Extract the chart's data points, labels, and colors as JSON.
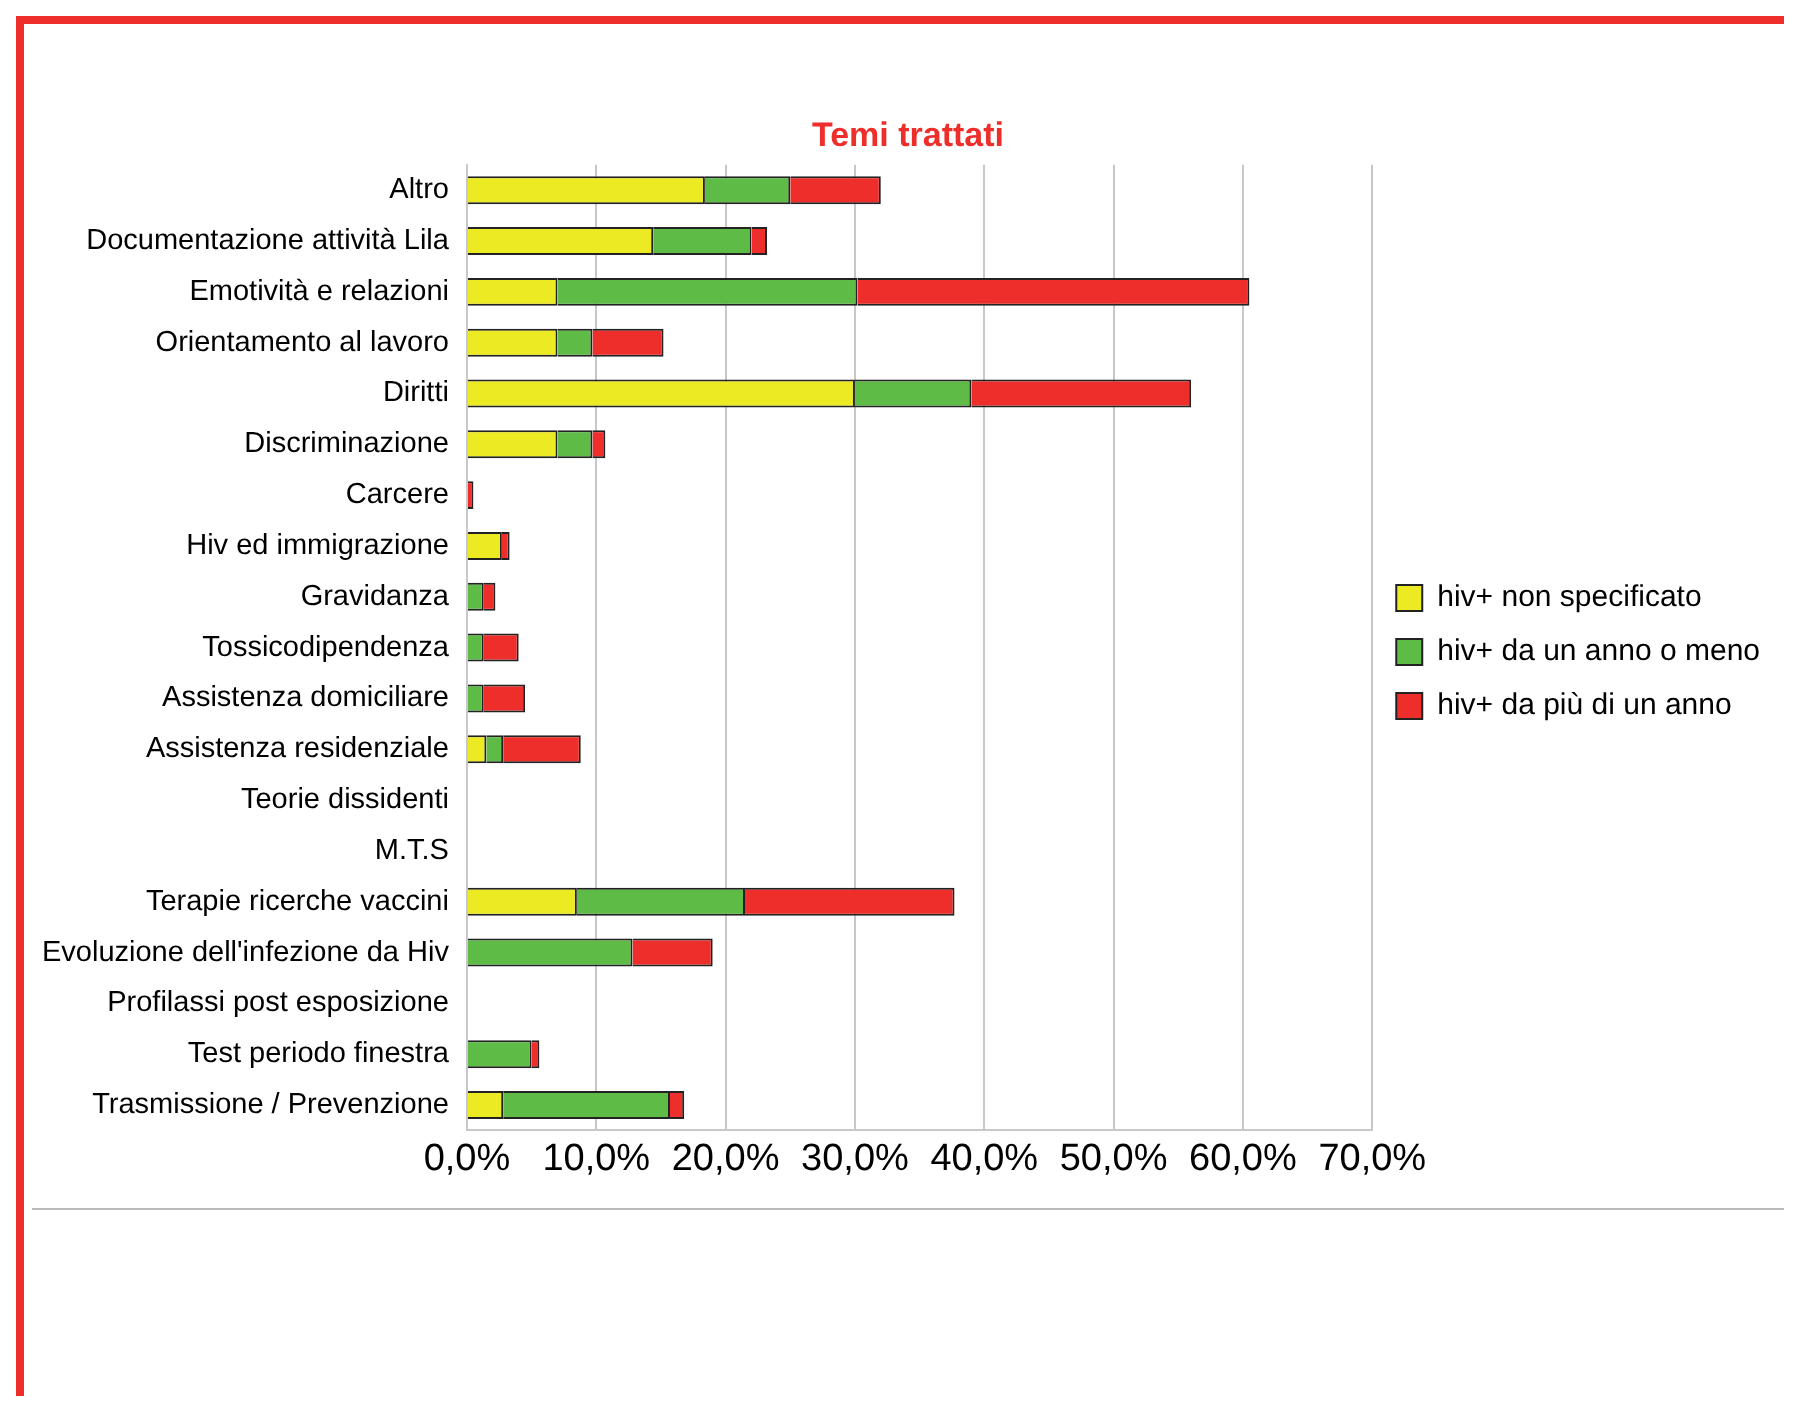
{
  "chart_data": {
    "type": "bar",
    "title": "Temi trattati",
    "orientation": "horizontal",
    "stacked": true,
    "categories": [
      "Altro",
      "Documentazione attività Lila",
      "Emotività e relazioni",
      "Orientamento al lavoro",
      "Diritti",
      "Discriminazione",
      "Carcere",
      "Hiv ed immigrazione",
      "Gravidanza",
      "Tossicodipendenza",
      "Assistenza domiciliare",
      "Assistenza residenziale",
      "Teorie dissidenti",
      "M.T.S",
      "Terapie ricerche vaccini",
      "Evoluzione dell'infezione da Hiv",
      "Profilassi post esposizione",
      "Test periodo finestra",
      "Trasmissione / Prevenzione"
    ],
    "series": [
      {
        "name": "hiv+ non specificato",
        "color": "#ecea22",
        "values": [
          18.4,
          14.4,
          7.0,
          7.0,
          30.0,
          7.0,
          0,
          2.7,
          0,
          0,
          0,
          1.5,
          0,
          0,
          8.5,
          0,
          0,
          0,
          2.8
        ]
      },
      {
        "name": "hiv+ da un anno o meno",
        "color": "#5dbb46",
        "values": [
          6.6,
          7.6,
          23.2,
          2.7,
          9.0,
          2.7,
          0,
          0,
          1.3,
          1.3,
          1.3,
          1.3,
          0,
          0,
          13.0,
          12.8,
          0,
          5.0,
          12.9
        ]
      },
      {
        "name": "hiv+ da più di un anno",
        "color": "#ee2e2b",
        "values": [
          7.0,
          1.2,
          30.3,
          5.5,
          17.0,
          1.0,
          0.5,
          0.6,
          0.9,
          2.7,
          3.2,
          6.0,
          0,
          0,
          16.2,
          6.2,
          0,
          0.6,
          1.1
        ]
      }
    ],
    "xlim": [
      0,
      70
    ],
    "xticks": [
      {
        "value": 0,
        "label": "0,0%"
      },
      {
        "value": 10,
        "label": "10,0%"
      },
      {
        "value": 20,
        "label": "20,0%"
      },
      {
        "value": 30,
        "label": "30,0%"
      },
      {
        "value": 40,
        "label": "40,0%"
      },
      {
        "value": 50,
        "label": "50,0%"
      },
      {
        "value": 60,
        "label": "60,0%"
      },
      {
        "value": 70,
        "label": "70,0%"
      }
    ],
    "grid": "x",
    "legend": "right"
  }
}
